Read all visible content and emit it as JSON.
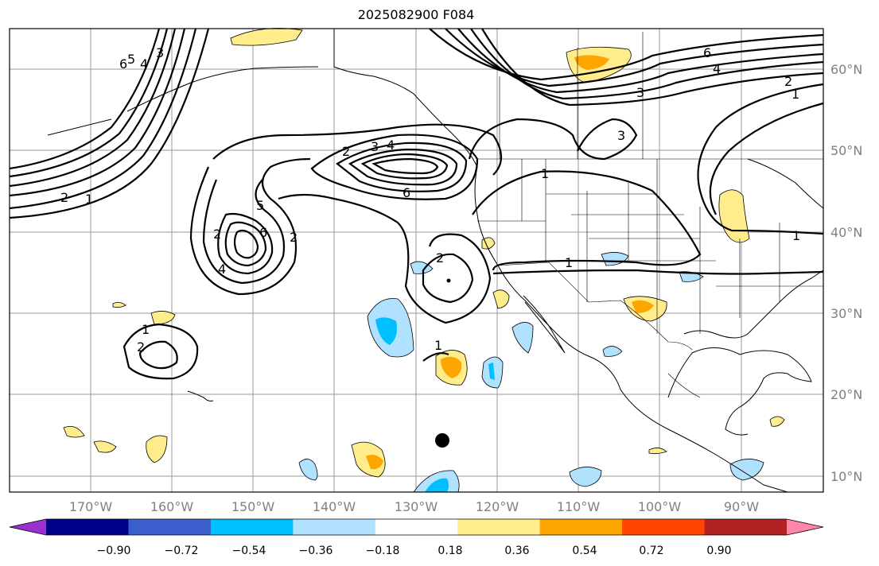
{
  "title": "2025082900 F084",
  "lon_labels": [
    "170°W",
    "160°W",
    "150°W",
    "140°W",
    "130°W",
    "120°W",
    "110°W",
    "100°W",
    "90°W"
  ],
  "lat_labels": [
    "60°N",
    "50°N",
    "40°N",
    "30°N",
    "20°N",
    "10°N"
  ],
  "colorbar": {
    "ticks": [
      "−0.90",
      "−0.72",
      "−0.54",
      "−0.36",
      "−0.18",
      "0.18",
      "0.36",
      "0.54",
      "0.72",
      "0.90"
    ],
    "colors": [
      "#9b30d0",
      "#00008b",
      "#3a5fcd",
      "#00bfff",
      "#b0e2ff",
      "#ffffff",
      "#ffec8b",
      "#ffa500",
      "#ff4500",
      "#b22222",
      "#ff88aa"
    ]
  },
  "contour_labels": [
    "1",
    "2",
    "3",
    "4",
    "5",
    "6",
    "1",
    "2",
    "3",
    "4",
    "6",
    "2",
    "3",
    "4",
    "5",
    "6",
    "2",
    "1",
    "2",
    "1",
    "2",
    "1",
    "1",
    "2",
    "3",
    "4",
    "6",
    "1"
  ],
  "marker": "black-dot"
}
